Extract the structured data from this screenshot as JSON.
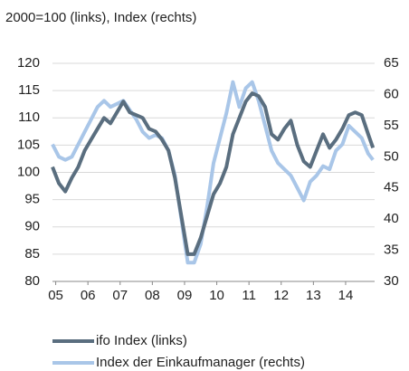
{
  "chart_data": {
    "type": "line",
    "subtitle": "2000=100 (links), Index (rechts)",
    "x": [
      2004.9,
      2005.1,
      2005.3,
      2005.5,
      2005.7,
      2005.9,
      2006.1,
      2006.3,
      2006.5,
      2006.7,
      2006.9,
      2007.1,
      2007.3,
      2007.5,
      2007.7,
      2007.9,
      2008.1,
      2008.3,
      2008.5,
      2008.7,
      2008.9,
      2009.1,
      2009.3,
      2009.5,
      2009.7,
      2009.9,
      2010.1,
      2010.3,
      2010.5,
      2010.7,
      2010.9,
      2011.1,
      2011.3,
      2011.5,
      2011.7,
      2011.9,
      2012.1,
      2012.3,
      2012.5,
      2012.7,
      2012.9,
      2013.1,
      2013.3,
      2013.5,
      2013.7,
      2013.9,
      2014.1,
      2014.3,
      2014.5,
      2014.7,
      2014.85
    ],
    "series": [
      {
        "name": "Index der Einkaufmanager (rechts)",
        "color": "#a9c6e8",
        "axis": "y2",
        "values": [
          52,
          50,
          49.5,
          50,
          52,
          54,
          56,
          58,
          59,
          58,
          58.5,
          59,
          57.5,
          56,
          54,
          53,
          53.5,
          53,
          51,
          47,
          40,
          33,
          33,
          36,
          42,
          49,
          53,
          57,
          62,
          58,
          61,
          62,
          59,
          55,
          51,
          49,
          48,
          47,
          45,
          43,
          46,
          47,
          48.5,
          48,
          51,
          52,
          55,
          54,
          53,
          50.5,
          49.5
        ]
      },
      {
        "name": "ifo Index (links)",
        "color": "#5a6e7f",
        "values": [
          101,
          98,
          96.5,
          99,
          101,
          104,
          106,
          108,
          110,
          109,
          111,
          113,
          111,
          110.5,
          110,
          108,
          107.5,
          106,
          104,
          99,
          92,
          85,
          85,
          88,
          92,
          96,
          98,
          101,
          107,
          110,
          113,
          114.5,
          114,
          112,
          107,
          106,
          108,
          109.5,
          105,
          102,
          101,
          104,
          107,
          104.5,
          106,
          108,
          110.5,
          111,
          110.5,
          107,
          104.5
        ]
      }
    ],
    "xlim": [
      2004.9,
      2014.9
    ],
    "xticks": [
      {
        "value": 2005,
        "label": "05"
      },
      {
        "value": 2006,
        "label": "06"
      },
      {
        "value": 2007,
        "label": "07"
      },
      {
        "value": 2008,
        "label": "08"
      },
      {
        "value": 2009,
        "label": "09"
      },
      {
        "value": 2010,
        "label": "10"
      },
      {
        "value": 2011,
        "label": "11"
      },
      {
        "value": 2012,
        "label": "12"
      },
      {
        "value": 2013,
        "label": "13"
      },
      {
        "value": 2014,
        "label": "14"
      }
    ],
    "ylim": [
      80,
      120
    ],
    "yticks": [
      80,
      85,
      90,
      95,
      100,
      105,
      110,
      115,
      120
    ],
    "y2lim": [
      30,
      65
    ],
    "y2ticks": [
      30,
      35,
      40,
      45,
      50,
      55,
      60,
      65
    ],
    "grid": true
  }
}
